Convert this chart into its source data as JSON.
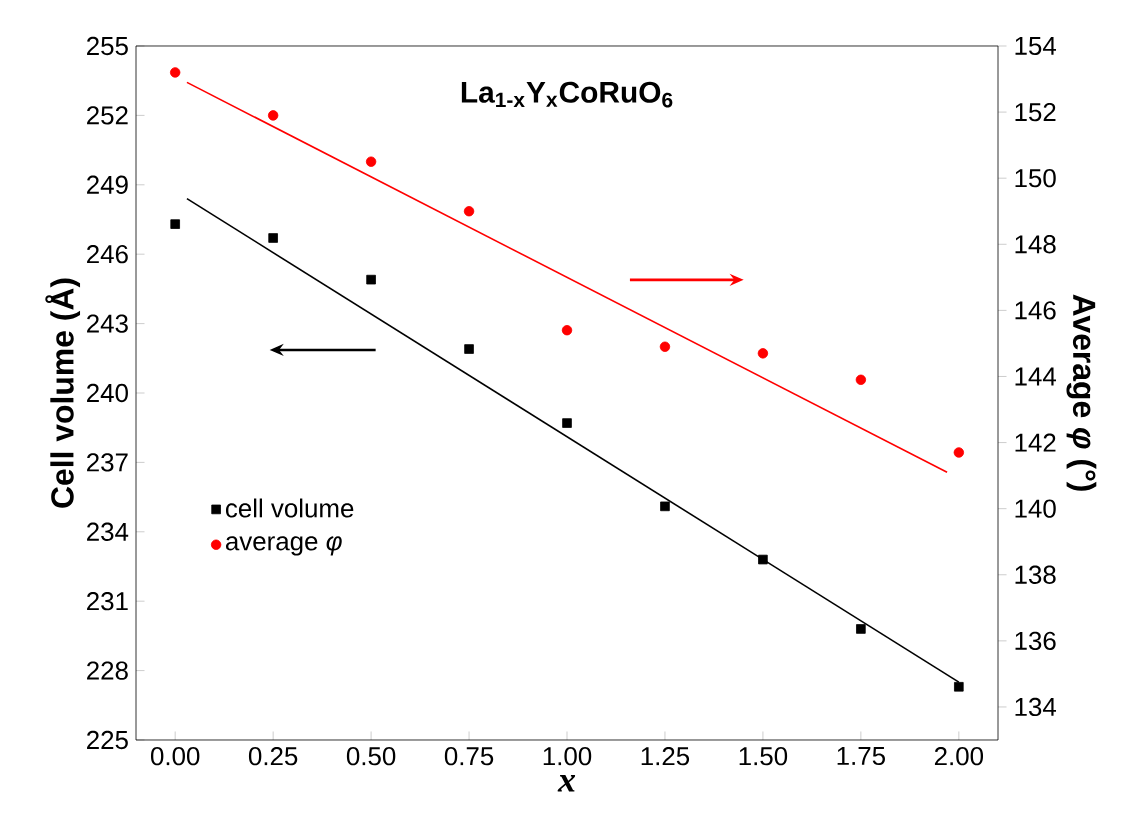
{
  "chart_data": {
    "type": "scatter",
    "title": "**La$_{1-x}$Y$_{x}$CoRuO$_{6}$**",
    "xlabel": "x",
    "ylabel": "Cell volume (Å)",
    "y2label": "Average *φ* (°)",
    "xlim": [
      -0.1,
      2.1
    ],
    "xticks": [
      {
        "value": 0,
        "label": "0.00"
      },
      {
        "value": 0.25,
        "label": "0.25"
      },
      {
        "value": 0.5,
        "label": "0.50"
      },
      {
        "value": 0.75,
        "label": "0.75"
      },
      {
        "value": 1,
        "label": "1.00"
      },
      {
        "value": 1.25,
        "label": "1.25"
      },
      {
        "value": 1.5,
        "label": "1.50"
      },
      {
        "value": 1.75,
        "label": "1.75"
      },
      {
        "value": 2,
        "label": "2.00"
      }
    ],
    "ylim": [
      225,
      255
    ],
    "yticks": [
      225,
      228,
      231,
      234,
      237,
      240,
      243,
      246,
      249,
      252,
      255
    ],
    "y2lim": [
      133,
      154
    ],
    "y2ticks": [
      134,
      136,
      138,
      140,
      142,
      144,
      146,
      148,
      150,
      152,
      154
    ],
    "grid": false,
    "legend": "left",
    "series": [
      {
        "name": "cell volume",
        "marker": "square",
        "color": "#000000",
        "x": [
          0,
          0.25,
          0.5,
          0.75,
          1,
          1.25,
          1.5,
          1.75,
          2
        ],
        "values": [
          247.3,
          246.7,
          244.9,
          241.9,
          238.7,
          235.1,
          232.8,
          229.8,
          227.3
        ]
      },
      {
        "name": "average *φ*",
        "marker": "circle",
        "color": "#ff0000",
        "axis": "y2",
        "x": [
          0,
          0.25,
          0.5,
          0.75,
          1,
          1.25,
          1.5,
          1.75,
          2
        ],
        "values": [
          153.2,
          151.9,
          150.5,
          149.0,
          145.4,
          144.9,
          144.7,
          143.9,
          141.7
        ]
      },
      {
        "type": "line",
        "color": "#000000",
        "x": [
          0.03,
          2.0
        ],
        "values": [
          248.4,
          227.5
        ]
      },
      {
        "type": "line",
        "color": "#ff0000",
        "axis": "y2",
        "x": [
          0.03,
          1.97
        ],
        "values": [
          152.9,
          141.1
        ]
      }
    ]
  }
}
